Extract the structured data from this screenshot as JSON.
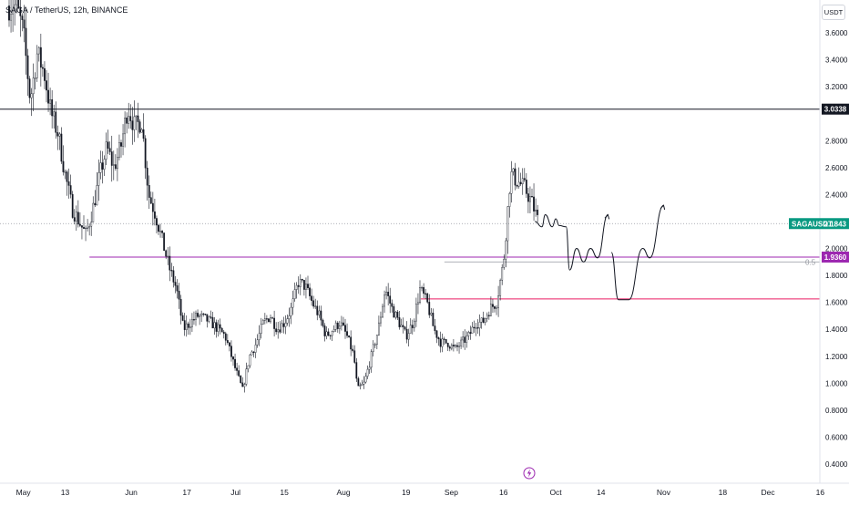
{
  "symbol_title": "SAGA / TetherUS, 12h, BINANCE",
  "currency": "USDT",
  "flash_icon": "lightning-icon",
  "colors": {
    "support_purple": "#9c27b0",
    "support_pink": "#e91e63",
    "resistance_black": "#131722",
    "current_price_bg": "#089981",
    "purple_label_bg": "#9c27b0",
    "candle": "#131722",
    "grid_dotted": "#9598a1",
    "fib_gray": "#9598a1"
  },
  "chart_data": {
    "type": "candlestick",
    "symbol": "SAGAUSDT",
    "interval": "12h",
    "exchange": "BINANCE",
    "y_range": [
      0.35,
      3.9
    ],
    "y_ticks": [
      "3.6000",
      "3.4000",
      "3.2000",
      "2.8000",
      "2.6000",
      "2.4000",
      "2.0000",
      "1.8000",
      "1.6000",
      "1.4000",
      "1.2000",
      "1.0000",
      "0.8000",
      "0.6000",
      "0.4000"
    ],
    "x_ticks": [
      "May",
      "13",
      "Jun",
      "17",
      "Jul",
      "15",
      "Aug",
      "19",
      "Sep",
      "16",
      "Oct",
      "14",
      "Nov",
      "18",
      "Dec",
      "16"
    ],
    "price_path": [
      [
        "2024-04-29",
        3.8
      ],
      [
        "2024-05-01",
        3.6
      ],
      [
        "2024-05-03",
        3.1
      ],
      [
        "2024-05-05",
        3.45
      ],
      [
        "2024-05-07",
        3.3
      ],
      [
        "2024-05-09",
        3.0
      ],
      [
        "2024-05-11",
        2.85
      ],
      [
        "2024-05-13",
        2.55
      ],
      [
        "2024-05-15",
        2.3
      ],
      [
        "2024-05-17",
        2.2
      ],
      [
        "2024-05-19",
        2.1
      ],
      [
        "2024-05-21",
        2.3
      ],
      [
        "2024-05-23",
        2.55
      ],
      [
        "2024-05-25",
        2.75
      ],
      [
        "2024-05-27",
        2.6
      ],
      [
        "2024-05-29",
        2.75
      ],
      [
        "2024-05-31",
        3.05
      ],
      [
        "2024-06-02",
        2.9
      ],
      [
        "2024-06-04",
        2.95
      ],
      [
        "2024-06-06",
        2.4
      ],
      [
        "2024-06-08",
        2.25
      ],
      [
        "2024-06-10",
        2.05
      ],
      [
        "2024-06-12",
        1.85
      ],
      [
        "2024-06-14",
        1.7
      ],
      [
        "2024-06-16",
        1.4
      ],
      [
        "2024-06-18",
        1.45
      ],
      [
        "2024-06-20",
        1.5
      ],
      [
        "2024-06-22",
        1.48
      ],
      [
        "2024-06-24",
        1.45
      ],
      [
        "2024-06-26",
        1.4
      ],
      [
        "2024-06-28",
        1.35
      ],
      [
        "2024-07-01",
        1.1
      ],
      [
        "2024-07-03",
        0.95
      ],
      [
        "2024-07-05",
        1.2
      ],
      [
        "2024-07-07",
        1.3
      ],
      [
        "2024-07-09",
        1.45
      ],
      [
        "2024-07-11",
        1.5
      ],
      [
        "2024-07-13",
        1.4
      ],
      [
        "2024-07-15",
        1.45
      ],
      [
        "2024-07-17",
        1.55
      ],
      [
        "2024-07-19",
        1.75
      ],
      [
        "2024-07-21",
        1.72
      ],
      [
        "2024-07-23",
        1.6
      ],
      [
        "2024-07-25",
        1.5
      ],
      [
        "2024-07-27",
        1.35
      ],
      [
        "2024-07-29",
        1.4
      ],
      [
        "2024-07-31",
        1.45
      ],
      [
        "2024-08-02",
        1.35
      ],
      [
        "2024-08-04",
        1.2
      ],
      [
        "2024-08-05",
        0.95
      ],
      [
        "2024-08-07",
        1.0
      ],
      [
        "2024-08-09",
        1.2
      ],
      [
        "2024-08-11",
        1.4
      ],
      [
        "2024-08-13",
        1.7
      ],
      [
        "2024-08-15",
        1.55
      ],
      [
        "2024-08-17",
        1.45
      ],
      [
        "2024-08-19",
        1.35
      ],
      [
        "2024-08-21",
        1.45
      ],
      [
        "2024-08-23",
        1.7
      ],
      [
        "2024-08-25",
        1.6
      ],
      [
        "2024-08-27",
        1.4
      ],
      [
        "2024-08-29",
        1.3
      ],
      [
        "2024-08-31",
        1.3
      ],
      [
        "2024-09-02",
        1.25
      ],
      [
        "2024-09-04",
        1.3
      ],
      [
        "2024-09-06",
        1.35
      ],
      [
        "2024-09-08",
        1.45
      ],
      [
        "2024-09-10",
        1.45
      ],
      [
        "2024-09-12",
        1.55
      ],
      [
        "2024-09-14",
        1.6
      ],
      [
        "2024-09-16",
        1.9
      ],
      [
        "2024-09-18",
        2.55
      ],
      [
        "2024-09-20",
        2.5
      ],
      [
        "2024-09-22",
        2.45
      ],
      [
        "2024-09-24",
        2.35
      ],
      [
        "2024-09-26",
        2.2
      ]
    ],
    "horizontal_lines": [
      {
        "price": 3.0338,
        "label": "3.0338",
        "color": "#131722"
      },
      {
        "price": 1.936,
        "label": "1.9360",
        "color": "#9c27b0"
      },
      {
        "price": 1.625,
        "color": "#e91e63"
      }
    ],
    "current_price": {
      "symbol": "SAGAUSDT",
      "price": "2.1843"
    },
    "fib_level": {
      "label": "0.5",
      "price": 1.9
    },
    "projection_paths": [
      [
        [
          "2024-09-25",
          2.2
        ],
        [
          "2024-09-27",
          2.16
        ],
        [
          "2024-09-28",
          2.25
        ],
        [
          "2024-09-30",
          2.16
        ],
        [
          "2024-10-01",
          2.22
        ],
        [
          "2024-10-02",
          2.17
        ],
        [
          "2024-10-04",
          2.16
        ],
        [
          "2024-10-05",
          1.84
        ],
        [
          "2024-10-07",
          2.0
        ],
        [
          "2024-10-09",
          1.9
        ],
        [
          "2024-10-11",
          2.0
        ],
        [
          "2024-10-13",
          1.93
        ],
        [
          "2024-10-16",
          2.25
        ]
      ],
      [
        [
          "2024-10-17",
          1.97
        ],
        [
          "2024-10-19",
          1.62
        ],
        [
          "2024-10-22",
          1.62
        ],
        [
          "2024-10-26",
          2.0
        ],
        [
          "2024-10-28",
          1.93
        ],
        [
          "2024-11-01",
          2.32
        ]
      ]
    ]
  }
}
